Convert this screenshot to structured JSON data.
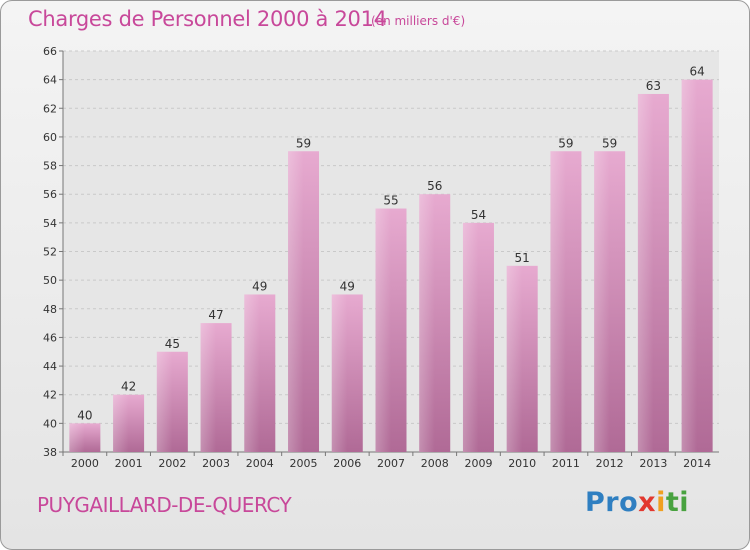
{
  "chart_data": {
    "type": "bar",
    "title": "Charges de Personnel 2000 à 2014",
    "subtitle": "(en milliers d'€)",
    "categories": [
      "2000",
      "2001",
      "2002",
      "2003",
      "2004",
      "2005",
      "2006",
      "2007",
      "2008",
      "2009",
      "2010",
      "2011",
      "2012",
      "2013",
      "2014"
    ],
    "values": [
      40,
      42,
      45,
      47,
      49,
      59,
      49,
      55,
      56,
      54,
      51,
      59,
      59,
      63,
      64
    ],
    "ylim": [
      38,
      66
    ],
    "yticks": [
      38,
      40,
      42,
      44,
      46,
      48,
      50,
      52,
      54,
      56,
      58,
      60,
      62,
      64,
      66
    ],
    "grid": true,
    "bar_color": "#d98cb8"
  },
  "place_name": "PUYGAILLARD-DE-QUERCY",
  "logo": {
    "p1": "Pro",
    "p2": "x",
    "p3": "i",
    "p4": "ti"
  }
}
